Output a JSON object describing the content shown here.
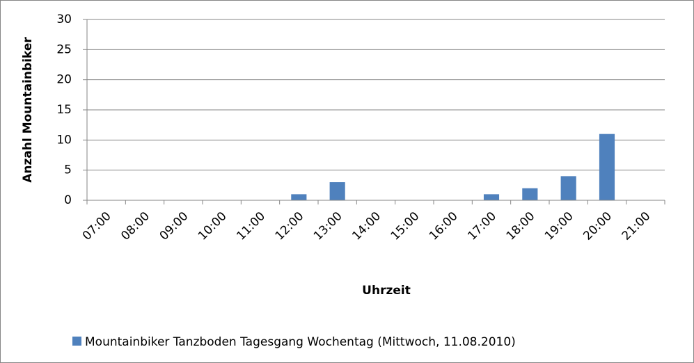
{
  "chart_data": {
    "type": "bar",
    "xlabel": "Uhrzeit",
    "ylabel": "Anzahl Mountainbiker",
    "categories": [
      "07:00",
      "08:00",
      "09:00",
      "10:00",
      "11:00",
      "12:00",
      "13:00",
      "14:00",
      "15:00",
      "16:00",
      "17:00",
      "18:00",
      "19:00",
      "20:00",
      "21:00"
    ],
    "series": [
      {
        "name": "Mountainbiker Tanzboden Tagesgang Wochentag (Mittwoch, 11.08.2010)",
        "color": "#4f81bd",
        "values": [
          0,
          0,
          0,
          0,
          0,
          1,
          3,
          0,
          0,
          0,
          1,
          2,
          4,
          11,
          0
        ]
      }
    ],
    "ylim": [
      0,
      30
    ],
    "yticks": [
      0,
      5,
      10,
      15,
      20,
      25,
      30
    ],
    "grid": true,
    "legend": "bottom"
  }
}
